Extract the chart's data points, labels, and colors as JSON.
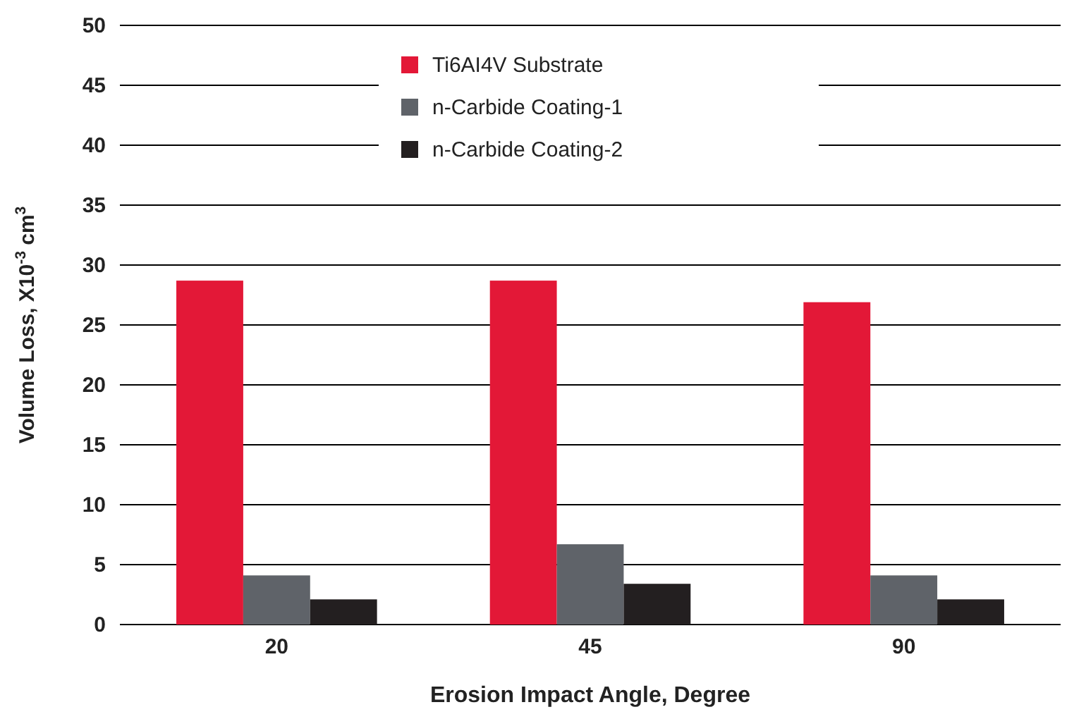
{
  "chart_data": {
    "type": "bar",
    "xlabel": "Erosion Impact Angle, Degree",
    "ylabel": "Volume Loss, X10$^{-3}$ cm$^{3}$",
    "categories": [
      "20",
      "45",
      "90"
    ],
    "series": [
      {
        "name": "Ti6AI4V Substrate",
        "color": "#e31837",
        "values": [
          28.7,
          28.7,
          26.9
        ]
      },
      {
        "name": "n-Carbide Coating-1",
        "color": "#5f6369",
        "values": [
          4.1,
          6.7,
          4.1
        ]
      },
      {
        "name": "n-Carbide Coating-2",
        "color": "#231f20",
        "values": [
          2.1,
          3.4,
          2.1
        ]
      }
    ],
    "ylim": [
      0,
      50
    ],
    "yticks": [
      0,
      5,
      10,
      15,
      20,
      25,
      30,
      35,
      40,
      45,
      50
    ],
    "grid": "y",
    "legend": "top"
  }
}
